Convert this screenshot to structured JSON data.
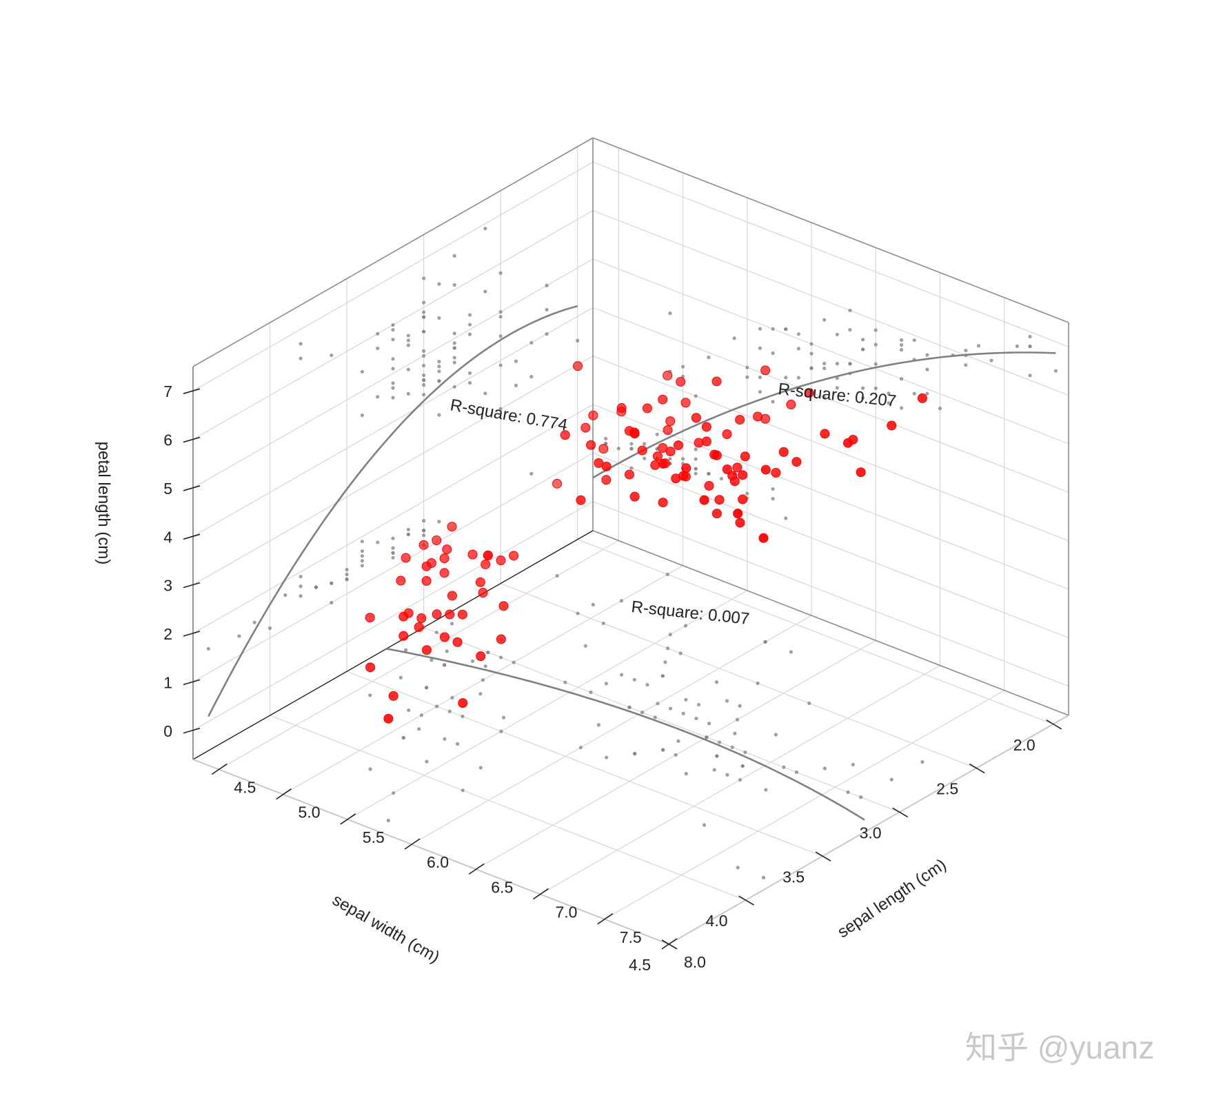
{
  "chart_data": {
    "type": "scatter",
    "projection": "3d",
    "xlabel": "sepal length (cm)",
    "ylabel": "sepal width (cm)",
    "zlabel": "petal length (cm)",
    "xlim": [
      4.3,
      8.0
    ],
    "ylim": [
      1.9,
      4.5
    ],
    "zlim": [
      -0.6,
      7.5
    ],
    "xticks": [
      "4.5",
      "5.0",
      "5.5",
      "6.0",
      "6.5",
      "7.0",
      "7.5",
      "8.0"
    ],
    "yticks": [
      "2.0",
      "2.5",
      "3.0",
      "3.5",
      "4.0",
      "4.5"
    ],
    "zticks": [
      "0",
      "1",
      "2",
      "3",
      "4",
      "5",
      "6",
      "7"
    ],
    "grid": true,
    "colors": {
      "points": "#ff0000",
      "projections": "#808080",
      "fit_curves": "#808080"
    },
    "annotations": [
      "R-square: 0.774",
      "R-square: 0.207",
      "R-square: 0.007"
    ],
    "watermark": "知乎 @yuanz",
    "series": [
      {
        "color": "#ff0000",
        "points": [
          [
            4.3,
            3.0,
            1.1
          ],
          [
            4.4,
            2.9,
            1.4
          ],
          [
            4.4,
            3.0,
            1.3
          ],
          [
            4.4,
            3.2,
            1.3
          ],
          [
            4.5,
            2.3,
            1.3
          ],
          [
            4.6,
            3.1,
            1.5
          ],
          [
            4.6,
            3.4,
            1.4
          ],
          [
            4.6,
            3.6,
            1.0
          ],
          [
            4.6,
            3.2,
            1.4
          ],
          [
            4.7,
            3.2,
            1.3
          ],
          [
            4.7,
            3.2,
            1.6
          ],
          [
            4.8,
            3.4,
            1.6
          ],
          [
            4.8,
            3.0,
            1.4
          ],
          [
            4.8,
            3.4,
            1.9
          ],
          [
            4.8,
            3.1,
            1.6
          ],
          [
            4.8,
            3.0,
            1.4
          ],
          [
            4.9,
            3.0,
            1.4
          ],
          [
            4.9,
            3.1,
            1.5
          ],
          [
            4.9,
            3.6,
            1.4
          ],
          [
            4.9,
            2.4,
            3.3
          ],
          [
            4.9,
            2.5,
            4.5
          ],
          [
            5.0,
            3.6,
            1.4
          ],
          [
            5.0,
            3.4,
            1.5
          ],
          [
            5.0,
            3.0,
            1.6
          ],
          [
            5.0,
            3.2,
            1.2
          ],
          [
            5.0,
            3.5,
            1.3
          ],
          [
            5.0,
            2.3,
            3.3
          ],
          [
            5.0,
            2.0,
            3.5
          ],
          [
            5.1,
            3.5,
            1.4
          ],
          [
            5.1,
            3.8,
            1.5
          ],
          [
            5.1,
            3.7,
            1.5
          ],
          [
            5.1,
            3.3,
            1.7
          ],
          [
            5.1,
            3.8,
            1.9
          ],
          [
            5.1,
            2.5,
            3.0
          ],
          [
            5.2,
            3.5,
            1.5
          ],
          [
            5.2,
            4.1,
            1.5
          ],
          [
            5.2,
            2.7,
            3.9
          ],
          [
            5.3,
            3.7,
            1.5
          ],
          [
            5.4,
            3.9,
            1.7
          ],
          [
            5.4,
            3.7,
            1.5
          ],
          [
            5.4,
            3.4,
            1.7
          ],
          [
            5.4,
            3.0,
            4.5
          ],
          [
            5.5,
            4.2,
            1.4
          ],
          [
            5.5,
            3.5,
            1.3
          ],
          [
            5.5,
            2.3,
            4.0
          ],
          [
            5.5,
            2.4,
            3.8
          ],
          [
            5.6,
            2.9,
            3.6
          ],
          [
            5.6,
            3.0,
            4.5
          ],
          [
            5.6,
            2.5,
            3.9
          ],
          [
            5.6,
            2.8,
            4.9
          ],
          [
            5.7,
            4.4,
            1.5
          ],
          [
            5.7,
            3.8,
            1.7
          ],
          [
            5.7,
            2.8,
            4.5
          ],
          [
            5.7,
            2.6,
            3.5
          ],
          [
            5.7,
            2.5,
            5.0
          ],
          [
            5.8,
            4.0,
            1.2
          ],
          [
            5.8,
            2.7,
            4.1
          ],
          [
            5.8,
            2.7,
            5.1
          ],
          [
            5.8,
            2.8,
            5.1
          ],
          [
            5.9,
            3.0,
            4.2
          ],
          [
            5.9,
            3.2,
            4.8
          ],
          [
            5.9,
            3.0,
            5.1
          ],
          [
            6.0,
            2.2,
            4.0
          ],
          [
            6.0,
            2.9,
            4.5
          ],
          [
            6.0,
            3.4,
            4.5
          ],
          [
            6.0,
            2.2,
            5.0
          ],
          [
            6.0,
            3.0,
            4.8
          ],
          [
            6.1,
            2.8,
            4.0
          ],
          [
            6.1,
            2.9,
            4.7
          ],
          [
            6.1,
            3.0,
            4.6
          ],
          [
            6.1,
            2.6,
            5.6
          ],
          [
            6.2,
            2.2,
            4.5
          ],
          [
            6.2,
            2.9,
            4.3
          ],
          [
            6.2,
            3.4,
            5.4
          ],
          [
            6.2,
            2.8,
            4.8
          ],
          [
            6.3,
            3.3,
            4.7
          ],
          [
            6.3,
            2.5,
            4.9
          ],
          [
            6.3,
            3.3,
            6.0
          ],
          [
            6.3,
            2.9,
            5.6
          ],
          [
            6.3,
            2.7,
            4.9
          ],
          [
            6.4,
            3.2,
            4.5
          ],
          [
            6.4,
            2.9,
            4.3
          ],
          [
            6.4,
            2.7,
            5.3
          ],
          [
            6.4,
            3.2,
            5.3
          ],
          [
            6.4,
            3.1,
            5.5
          ],
          [
            6.5,
            2.8,
            4.6
          ],
          [
            6.5,
            3.0,
            5.8
          ],
          [
            6.5,
            3.2,
            5.1
          ],
          [
            6.5,
            3.0,
            5.5
          ],
          [
            6.6,
            2.9,
            4.6
          ],
          [
            6.6,
            3.0,
            4.4
          ],
          [
            6.7,
            3.1,
            4.4
          ],
          [
            6.7,
            3.0,
            5.0
          ],
          [
            6.7,
            2.5,
            5.8
          ],
          [
            6.7,
            3.3,
            5.7
          ],
          [
            6.7,
            3.1,
            5.6
          ],
          [
            6.8,
            2.8,
            4.8
          ],
          [
            6.8,
            3.0,
            5.5
          ],
          [
            6.8,
            3.2,
            5.9
          ],
          [
            6.9,
            3.1,
            4.9
          ],
          [
            6.9,
            3.2,
            5.7
          ],
          [
            6.9,
            3.1,
            5.4
          ],
          [
            7.0,
            3.2,
            4.7
          ],
          [
            7.1,
            3.0,
            5.9
          ],
          [
            7.2,
            3.6,
            6.1
          ],
          [
            7.2,
            3.2,
            6.0
          ],
          [
            7.2,
            3.0,
            5.8
          ],
          [
            7.3,
            2.9,
            6.3
          ],
          [
            7.4,
            2.8,
            6.1
          ],
          [
            7.6,
            3.0,
            6.6
          ],
          [
            7.7,
            3.8,
            6.7
          ],
          [
            7.7,
            2.6,
            6.9
          ],
          [
            7.7,
            2.8,
            6.7
          ],
          [
            7.7,
            3.0,
            6.1
          ],
          [
            7.9,
            3.8,
            6.4
          ]
        ]
      }
    ],
    "fit_curves": [
      {
        "plane": "x-z",
        "label": "R-square: 0.774"
      },
      {
        "plane": "y-z",
        "label": "R-square: 0.207"
      },
      {
        "plane": "x-y",
        "label": "R-square: 0.007"
      }
    ]
  }
}
